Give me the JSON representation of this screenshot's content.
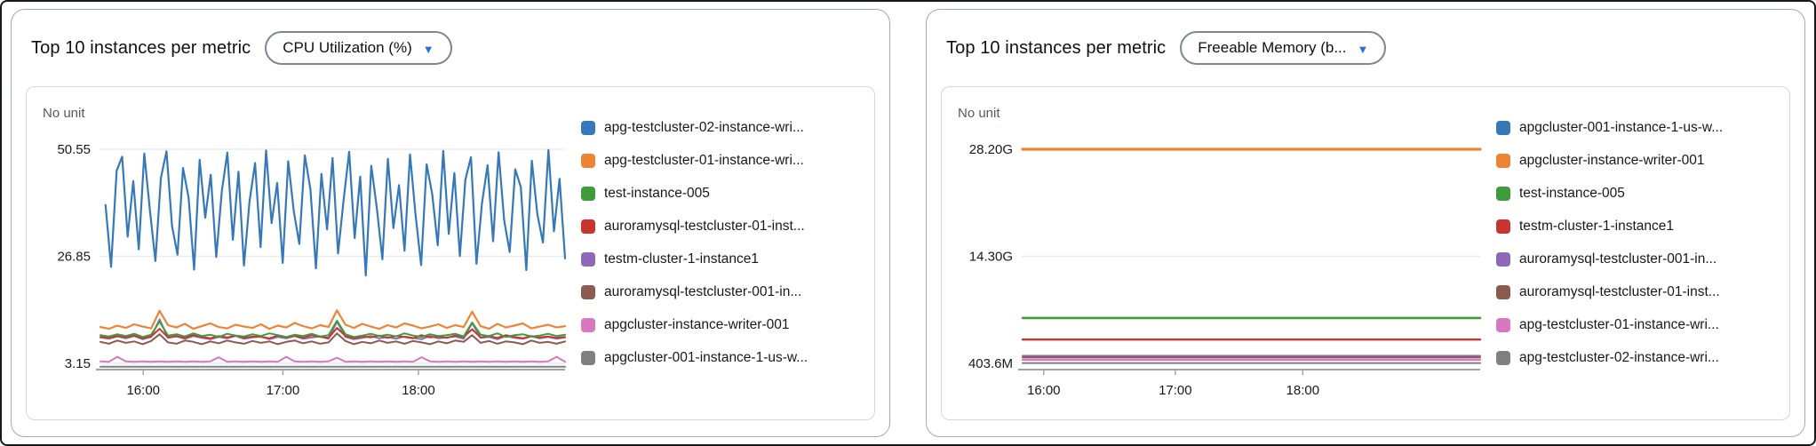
{
  "panels": [
    {
      "title": "Top 10 instances per metric",
      "dropdown": {
        "label": "CPU Utilization (%)",
        "caret_color": "#2373d8"
      },
      "unit_label": "No unit",
      "legend": [
        {
          "label": "apg-testcluster-02-instance-wri...",
          "color": "#3678b8"
        },
        {
          "label": "apg-testcluster-01-instance-wri...",
          "color": "#ee8433"
        },
        {
          "label": "test-instance-005",
          "color": "#3f9c3a"
        },
        {
          "label": "auroramysql-testcluster-01-inst...",
          "color": "#c8352f"
        },
        {
          "label": "testm-cluster-1-instance1",
          "color": "#8f69b8"
        },
        {
          "label": "auroramysql-testcluster-001-in...",
          "color": "#8c5a4f"
        },
        {
          "label": "apgcluster-instance-writer-001",
          "color": "#d878c0"
        },
        {
          "label": "apgcluster-001-instance-1-us-w...",
          "color": "#808080"
        }
      ],
      "chart_data": {
        "type": "line",
        "title": "Top 10 instances per metric - CPU Utilization (%)",
        "ylabel": "No unit",
        "ylim": [
          0,
          55
        ],
        "grid": true,
        "legend_position": "right",
        "yticks": [
          {
            "label": "50.55",
            "value": 50.55
          },
          {
            "label": "26.85",
            "value": 26.85
          },
          {
            "label": "3.15",
            "value": 3.15
          }
        ],
        "xticks": [
          {
            "label": "16:00",
            "f": 0.094
          },
          {
            "label": "17:00",
            "f": 0.394
          },
          {
            "label": "18:00",
            "f": 0.685
          }
        ],
        "series": [
          {
            "name": "apgcluster-001-instance-1-us-w...",
            "color": "#808080",
            "width": 2,
            "start": 0.002,
            "values": [
              2.4,
              2.4
            ]
          },
          {
            "name": "apgcluster-instance-writer-001",
            "color": "#d878c0",
            "width": 2,
            "start": 0.002,
            "values": [
              3.6,
              3.5,
              4.6,
              3.6,
              3.5,
              3.6,
              3.5,
              3.6,
              3.5,
              3.6,
              3.5,
              3.6,
              3.5,
              3.6,
              4.5,
              3.5,
              3.6,
              3.5,
              3.6,
              3.5,
              3.6,
              3.5,
              4.6,
              3.6,
              3.5,
              3.6,
              3.5,
              3.6,
              4.4,
              3.5,
              3.6,
              3.5,
              3.6,
              3.5,
              3.6,
              3.5,
              3.6,
              3.5,
              4.5,
              3.6,
              3.5,
              3.6,
              3.5,
              3.6,
              3.5,
              3.6,
              3.5,
              3.6,
              3.5,
              3.6,
              3.5,
              3.6,
              3.5,
              3.6,
              4.6,
              3.5
            ]
          },
          {
            "name": "auroramysql-testcluster-001-in...",
            "color": "#8c5a4f",
            "width": 2,
            "start": 0.002,
            "values": [
              7.9,
              7.5,
              8.2,
              7.7,
              8.0,
              7.4,
              8.1,
              9.6,
              7.8,
              7.5,
              8.2,
              7.9,
              7.4,
              8.0,
              7.6,
              8.2,
              7.8,
              7.5,
              8.1,
              7.7,
              8.0,
              7.4,
              7.9,
              8.2,
              7.6,
              8.0,
              7.5,
              7.8,
              9.8,
              8.1,
              7.4,
              7.9,
              7.6,
              8.2,
              7.7,
              8.0,
              7.5,
              8.1,
              7.8,
              7.4,
              8.0,
              7.6,
              8.2,
              7.9,
              9.4,
              7.7,
              8.1,
              7.5,
              8.0,
              7.8,
              7.4,
              8.2,
              7.7,
              7.9,
              7.5,
              8.0
            ]
          },
          {
            "name": "testm-cluster-1-instance1",
            "color": "#8f69b8",
            "width": 2,
            "start": 0.002,
            "values": [
              8.9,
              8.6,
              9.1,
              8.7,
              9.2,
              8.5,
              9.0,
              12.9,
              8.8,
              9.1,
              8.6,
              9.2,
              8.8,
              8.5,
              9.0,
              8.7,
              9.2,
              8.6,
              8.9,
              9.1,
              8.5,
              9.0,
              8.7,
              9.2,
              8.6,
              8.9,
              9.1,
              8.6,
              12.4,
              9.0,
              8.5,
              8.8,
              9.2,
              8.7,
              9.0,
              8.6,
              9.1,
              8.8,
              8.5,
              9.2,
              8.7,
              8.9,
              9.1,
              8.6,
              12.1,
              8.8,
              9.0,
              8.5,
              9.2,
              8.8,
              8.6,
              9.1,
              8.7,
              9.0,
              8.6,
              8.9
            ]
          },
          {
            "name": "auroramysql-testcluster-01-inst...",
            "color": "#c8352f",
            "width": 2,
            "start": 0.002,
            "values": [
              9.0,
              8.8,
              9.2,
              8.9,
              9.3,
              8.7,
              9.1,
              10.8,
              8.9,
              9.2,
              8.8,
              9.4,
              9.0,
              8.7,
              9.2,
              8.9,
              9.3,
              8.8,
              9.1,
              9.0,
              8.7,
              9.3,
              8.9,
              9.2,
              8.8,
              9.4,
              9.0,
              8.8,
              11.0,
              9.2,
              8.7,
              9.1,
              8.9,
              9.3,
              8.8,
              9.2,
              9.0,
              8.7,
              9.4,
              8.9,
              9.1,
              8.8,
              9.3,
              9.0,
              10.7,
              8.9,
              9.2,
              8.8,
              9.4,
              9.0,
              8.7,
              9.2,
              8.9,
              9.1,
              8.8,
              9.0
            ]
          },
          {
            "name": "test-instance-005",
            "color": "#3f9c3a",
            "width": 2,
            "start": 0.002,
            "values": [
              9.4,
              9.1,
              9.6,
              9.2,
              9.7,
              9.0,
              9.5,
              12.4,
              9.3,
              9.6,
              9.1,
              9.8,
              9.2,
              9.5,
              9.0,
              9.7,
              9.3,
              9.1,
              9.6,
              9.2,
              9.8,
              9.4,
              9.0,
              9.5,
              9.2,
              9.7,
              9.1,
              9.4,
              12.6,
              9.6,
              9.0,
              9.3,
              9.7,
              9.2,
              9.5,
              9.1,
              9.8,
              9.3,
              9.0,
              9.6,
              9.2,
              9.4,
              9.7,
              9.1,
              12.2,
              9.5,
              9.2,
              9.8,
              9.0,
              9.4,
              9.6,
              9.1,
              9.3,
              9.7,
              9.2,
              9.5
            ]
          },
          {
            "name": "apg-testcluster-01-instance-wri...",
            "color": "#ee8433",
            "width": 2.2,
            "start": 0.002,
            "values": [
              11.2,
              10.8,
              11.5,
              11.0,
              11.8,
              11.3,
              10.9,
              14.8,
              11.6,
              11.1,
              11.9,
              10.8,
              11.4,
              12.0,
              11.2,
              10.9,
              11.7,
              11.3,
              11.0,
              11.8,
              10.8,
              11.5,
              11.1,
              12.1,
              11.4,
              10.9,
              11.6,
              11.2,
              14.9,
              11.7,
              11.0,
              11.9,
              11.3,
              10.8,
              11.6,
              11.1,
              12.0,
              11.5,
              10.9,
              11.3,
              11.8,
              11.0,
              11.6,
              11.2,
              14.6,
              11.4,
              10.8,
              11.9,
              11.1,
              11.5,
              12.0,
              10.9,
              11.3,
              11.7,
              11.1,
              11.4
            ]
          },
          {
            "name": "apg-testcluster-02-instance-wri...",
            "color": "#3678b8",
            "width": 2.2,
            "start": 0.013,
            "values": [
              38.2,
              24.5,
              45.8,
              48.9,
              31.2,
              43.5,
              28.4,
              49.6,
              37.1,
              25.8,
              44.2,
              50.1,
              33.6,
              27.2,
              46.4,
              39.8,
              23.9,
              48.2,
              35.4,
              44.9,
              26.7,
              41.3,
              49.8,
              30.5,
              45.6,
              24.8,
              38.9,
              47.5,
              28.9,
              50.3,
              34.2,
              43.1,
              25.4,
              47.9,
              36.8,
              29.6,
              49.2,
              41.7,
              24.2,
              45.1,
              32.8,
              48.6,
              27.5,
              39.4,
              50.0,
              30.9,
              44.5,
              22.6,
              46.9,
              37.6,
              26.2,
              48.4,
              33.1,
              42.6,
              28.1,
              49.4,
              35.9,
              24.9,
              47.2,
              40.6,
              29.3,
              50.2,
              31.8,
              45.3,
              26.9,
              43.8,
              48.8,
              25.2,
              38.6,
              47.0,
              30.2,
              49.9,
              34.8,
              27.8,
              46.1,
              42.2,
              23.8,
              48.0,
              36.2,
              29.9,
              50.4,
              32.4,
              44.0,
              26.4
            ]
          }
        ]
      }
    },
    {
      "title": "Top 10 instances per metric",
      "dropdown": {
        "label": "Freeable Memory (b...",
        "caret_color": "#2373d8"
      },
      "unit_label": "No unit",
      "legend": [
        {
          "label": "apgcluster-001-instance-1-us-w...",
          "color": "#3678b8"
        },
        {
          "label": "apgcluster-instance-writer-001",
          "color": "#ee8433"
        },
        {
          "label": "test-instance-005",
          "color": "#3f9c3a"
        },
        {
          "label": "testm-cluster-1-instance1",
          "color": "#c8352f"
        },
        {
          "label": "auroramysql-testcluster-001-in...",
          "color": "#8f69b8"
        },
        {
          "label": "auroramysql-testcluster-01-inst...",
          "color": "#8c5a4f"
        },
        {
          "label": "apg-testcluster-01-instance-wri...",
          "color": "#d878c0"
        },
        {
          "label": "apg-testcluster-02-instance-wri...",
          "color": "#808080"
        }
      ],
      "chart_data": {
        "type": "line",
        "title": "Top 10 instances per metric - Freeable Memory (bytes)",
        "ylabel": "No unit",
        "ylim": [
          0,
          30000000000
        ],
        "grid": true,
        "legend_position": "right",
        "yticks": [
          {
            "label": "28.20G",
            "value": 28.2
          },
          {
            "label": "14.30G",
            "value": 14.3
          },
          {
            "label": "403.6M",
            "value": 0.4036
          }
        ],
        "xticks": [
          {
            "label": "16:00",
            "f": 0.048
          },
          {
            "label": "17:00",
            "f": 0.335
          },
          {
            "label": "18:00",
            "f": 0.613
          }
        ],
        "series": [
          {
            "name": "apgcluster-001-instance-1-us-w...",
            "color": "#3678b8",
            "width": 2,
            "start": 0.002,
            "values": [
              28.2,
              28.2
            ]
          },
          {
            "name": "apgcluster-instance-writer-001",
            "color": "#ee8433",
            "width": 3.2,
            "start": 0.002,
            "values": [
              28.2,
              28.2
            ]
          },
          {
            "name": "test-instance-005",
            "color": "#3f9c3a",
            "width": 2.6,
            "start": 0.002,
            "values": [
              6.3,
              6.3
            ]
          },
          {
            "name": "testm-cluster-1-instance1",
            "color": "#c8352f",
            "width": 2.4,
            "start": 0.002,
            "values": [
              3.5,
              3.5
            ]
          },
          {
            "name": "auroramysql-testcluster-001-in...",
            "color": "#8f69b8",
            "width": 2,
            "start": 0.002,
            "values": [
              1.38,
              1.38
            ]
          },
          {
            "name": "auroramysql-testcluster-01-inst...",
            "color": "#8c5a4f",
            "width": 2,
            "start": 0.002,
            "values": [
              1.18,
              1.18
            ]
          },
          {
            "name": "apg-testcluster-01-instance-wri...",
            "color": "#d878c0",
            "width": 2.2,
            "start": 0.002,
            "values": [
              0.88,
              0.88
            ]
          },
          {
            "name": "apg-testcluster-02-instance-wri...",
            "color": "#808080",
            "width": 2,
            "start": 0.002,
            "values": [
              0.45,
              0.45
            ]
          }
        ]
      }
    }
  ]
}
